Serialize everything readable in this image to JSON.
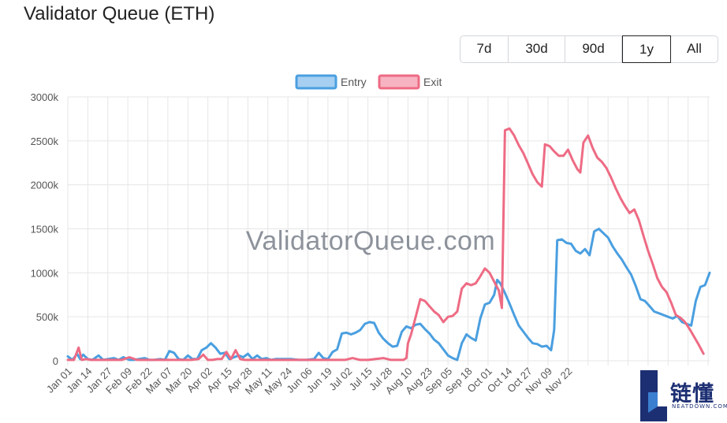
{
  "header": {
    "title": "Validator Queue (ETH)"
  },
  "range_buttons": [
    {
      "label": "7d",
      "active": false
    },
    {
      "label": "30d",
      "active": false
    },
    {
      "label": "90d",
      "active": false
    },
    {
      "label": "1y",
      "active": true
    },
    {
      "label": "All",
      "active": false
    }
  ],
  "watermark": "ValidatorQueue.com",
  "logo": {
    "text": "链懂",
    "subtext": "NEATDOWN.COM"
  },
  "chart_data": {
    "type": "line",
    "title": "",
    "xlabel": "",
    "ylabel": "",
    "ylim": [
      0,
      3000
    ],
    "y_ticks": [
      "0",
      "500k",
      "1000k",
      "1500k",
      "2000k",
      "2500k",
      "3000k"
    ],
    "x_tick_labels": [
      "Jan 01",
      "Jan 14",
      "Jan 27",
      "Feb 09",
      "Feb 22",
      "Mar 07",
      "Mar 20",
      "Apr 02",
      "Apr 15",
      "Apr 28",
      "May 11",
      "May 24",
      "Jun 06",
      "Jun 19",
      "Jul 02",
      "Jul 15",
      "Jul 28",
      "Aug 10",
      "Aug 23",
      "Sep 05",
      "Sep 18",
      "Oct 01",
      "Oct 14",
      "Oct 27",
      "Nov 09",
      "Nov 22"
    ],
    "legend_position": "top-center",
    "grid": true,
    "series": [
      {
        "name": "Entry",
        "color": "#4a9fe0",
        "points": [
          [
            0,
            50
          ],
          [
            3,
            10
          ],
          [
            6,
            80
          ],
          [
            8,
            20
          ],
          [
            10,
            70
          ],
          [
            13,
            20
          ],
          [
            16,
            10
          ],
          [
            20,
            60
          ],
          [
            23,
            10
          ],
          [
            26,
            20
          ],
          [
            30,
            30
          ],
          [
            33,
            10
          ],
          [
            36,
            40
          ],
          [
            40,
            10
          ],
          [
            43,
            10
          ],
          [
            46,
            20
          ],
          [
            50,
            30
          ],
          [
            53,
            10
          ],
          [
            56,
            10
          ],
          [
            60,
            20
          ],
          [
            63,
            10
          ],
          [
            66,
            110
          ],
          [
            69,
            90
          ],
          [
            72,
            20
          ],
          [
            75,
            10
          ],
          [
            78,
            60
          ],
          [
            81,
            20
          ],
          [
            84,
            20
          ],
          [
            87,
            120
          ],
          [
            90,
            150
          ],
          [
            93,
            200
          ],
          [
            96,
            150
          ],
          [
            99,
            80
          ],
          [
            102,
            90
          ],
          [
            105,
            20
          ],
          [
            108,
            40
          ],
          [
            111,
            60
          ],
          [
            114,
            40
          ],
          [
            117,
            80
          ],
          [
            120,
            20
          ],
          [
            123,
            60
          ],
          [
            126,
            20
          ],
          [
            129,
            30
          ],
          [
            132,
            10
          ],
          [
            135,
            20
          ],
          [
            140,
            20
          ],
          [
            145,
            20
          ],
          [
            150,
            10
          ],
          [
            155,
            10
          ],
          [
            160,
            20
          ],
          [
            163,
            90
          ],
          [
            166,
            30
          ],
          [
            169,
            20
          ],
          [
            172,
            100
          ],
          [
            175,
            130
          ],
          [
            178,
            310
          ],
          [
            181,
            320
          ],
          [
            184,
            300
          ],
          [
            187,
            320
          ],
          [
            190,
            350
          ],
          [
            193,
            420
          ],
          [
            196,
            440
          ],
          [
            199,
            430
          ],
          [
            202,
            320
          ],
          [
            205,
            250
          ],
          [
            208,
            200
          ],
          [
            211,
            160
          ],
          [
            214,
            170
          ],
          [
            217,
            330
          ],
          [
            220,
            390
          ],
          [
            223,
            370
          ],
          [
            226,
            410
          ],
          [
            229,
            420
          ],
          [
            232,
            360
          ],
          [
            235,
            310
          ],
          [
            238,
            240
          ],
          [
            241,
            200
          ],
          [
            244,
            130
          ],
          [
            247,
            60
          ],
          [
            250,
            30
          ],
          [
            253,
            10
          ],
          [
            256,
            200
          ],
          [
            259,
            300
          ],
          [
            262,
            260
          ],
          [
            265,
            230
          ],
          [
            268,
            480
          ],
          [
            271,
            640
          ],
          [
            274,
            660
          ],
          [
            277,
            750
          ],
          [
            279,
            920
          ],
          [
            281,
            880
          ],
          [
            284,
            770
          ],
          [
            287,
            650
          ],
          [
            290,
            520
          ],
          [
            293,
            400
          ],
          [
            296,
            330
          ],
          [
            299,
            260
          ],
          [
            302,
            200
          ],
          [
            305,
            190
          ],
          [
            308,
            160
          ],
          [
            311,
            170
          ],
          [
            314,
            120
          ],
          [
            316,
            350
          ],
          [
            318,
            1370
          ],
          [
            321,
            1380
          ],
          [
            324,
            1340
          ],
          [
            327,
            1330
          ],
          [
            330,
            1250
          ],
          [
            333,
            1220
          ],
          [
            336,
            1270
          ],
          [
            339,
            1200
          ],
          [
            342,
            1470
          ],
          [
            345,
            1500
          ],
          [
            348,
            1450
          ],
          [
            351,
            1400
          ],
          [
            354,
            1300
          ],
          [
            357,
            1220
          ],
          [
            360,
            1150
          ],
          [
            363,
            1060
          ],
          [
            366,
            980
          ],
          [
            369,
            850
          ],
          [
            372,
            700
          ],
          [
            375,
            680
          ],
          [
            378,
            620
          ],
          [
            381,
            560
          ],
          [
            384,
            540
          ],
          [
            387,
            520
          ],
          [
            390,
            500
          ],
          [
            393,
            480
          ],
          [
            396,
            510
          ],
          [
            399,
            440
          ],
          [
            402,
            420
          ],
          [
            405,
            400
          ],
          [
            408,
            680
          ],
          [
            411,
            840
          ],
          [
            414,
            860
          ],
          [
            417,
            1000
          ]
        ]
      },
      {
        "name": "Exit",
        "color": "#ee6b84",
        "points": [
          [
            0,
            10
          ],
          [
            4,
            10
          ],
          [
            7,
            150
          ],
          [
            9,
            10
          ],
          [
            12,
            20
          ],
          [
            15,
            10
          ],
          [
            20,
            10
          ],
          [
            25,
            10
          ],
          [
            30,
            10
          ],
          [
            35,
            10
          ],
          [
            40,
            40
          ],
          [
            45,
            10
          ],
          [
            50,
            10
          ],
          [
            55,
            10
          ],
          [
            60,
            10
          ],
          [
            65,
            10
          ],
          [
            70,
            10
          ],
          [
            75,
            10
          ],
          [
            80,
            10
          ],
          [
            85,
            20
          ],
          [
            88,
            70
          ],
          [
            91,
            10
          ],
          [
            94,
            10
          ],
          [
            97,
            20
          ],
          [
            100,
            20
          ],
          [
            103,
            100
          ],
          [
            106,
            20
          ],
          [
            109,
            120
          ],
          [
            112,
            20
          ],
          [
            115,
            10
          ],
          [
            120,
            10
          ],
          [
            130,
            10
          ],
          [
            140,
            10
          ],
          [
            150,
            10
          ],
          [
            160,
            10
          ],
          [
            170,
            10
          ],
          [
            175,
            10
          ],
          [
            180,
            10
          ],
          [
            185,
            30
          ],
          [
            190,
            10
          ],
          [
            195,
            10
          ],
          [
            200,
            20
          ],
          [
            205,
            30
          ],
          [
            210,
            10
          ],
          [
            215,
            10
          ],
          [
            218,
            10
          ],
          [
            220,
            30
          ],
          [
            221,
            200
          ],
          [
            223,
            300
          ],
          [
            226,
            500
          ],
          [
            229,
            700
          ],
          [
            232,
            680
          ],
          [
            235,
            620
          ],
          [
            238,
            560
          ],
          [
            241,
            520
          ],
          [
            244,
            440
          ],
          [
            247,
            500
          ],
          [
            250,
            510
          ],
          [
            253,
            560
          ],
          [
            256,
            820
          ],
          [
            259,
            880
          ],
          [
            262,
            860
          ],
          [
            265,
            880
          ],
          [
            268,
            960
          ],
          [
            271,
            1050
          ],
          [
            274,
            1000
          ],
          [
            277,
            900
          ],
          [
            280,
            800
          ],
          [
            282,
            600
          ],
          [
            284,
            2620
          ],
          [
            287,
            2640
          ],
          [
            290,
            2560
          ],
          [
            293,
            2450
          ],
          [
            296,
            2360
          ],
          [
            299,
            2240
          ],
          [
            302,
            2120
          ],
          [
            305,
            2030
          ],
          [
            308,
            1980
          ],
          [
            310,
            2460
          ],
          [
            313,
            2440
          ],
          [
            316,
            2380
          ],
          [
            319,
            2330
          ],
          [
            322,
            2330
          ],
          [
            325,
            2400
          ],
          [
            328,
            2280
          ],
          [
            331,
            2180
          ],
          [
            333,
            2140
          ],
          [
            335,
            2480
          ],
          [
            338,
            2560
          ],
          [
            341,
            2420
          ],
          [
            344,
            2310
          ],
          [
            347,
            2260
          ],
          [
            350,
            2190
          ],
          [
            353,
            2080
          ],
          [
            356,
            1960
          ],
          [
            359,
            1850
          ],
          [
            362,
            1760
          ],
          [
            365,
            1680
          ],
          [
            368,
            1720
          ],
          [
            371,
            1600
          ],
          [
            374,
            1420
          ],
          [
            377,
            1250
          ],
          [
            380,
            1100
          ],
          [
            383,
            940
          ],
          [
            386,
            840
          ],
          [
            389,
            780
          ],
          [
            392,
            660
          ],
          [
            395,
            520
          ],
          [
            398,
            490
          ],
          [
            401,
            440
          ],
          [
            404,
            360
          ],
          [
            407,
            270
          ],
          [
            410,
            180
          ],
          [
            413,
            80
          ]
        ]
      }
    ]
  }
}
